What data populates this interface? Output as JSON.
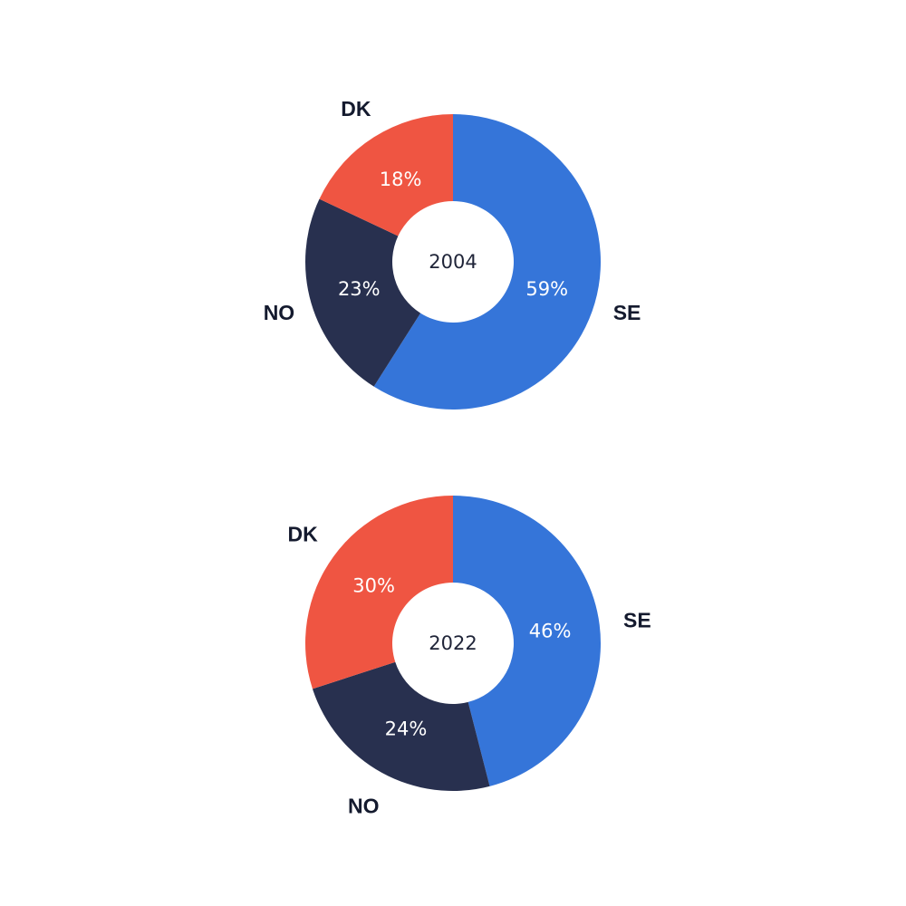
{
  "chart_data": [
    {
      "type": "pie",
      "center_label": "2004",
      "slices": [
        {
          "category": "SE",
          "value": 59,
          "label": "59%",
          "color": "#3575d9"
        },
        {
          "category": "NO",
          "value": 23,
          "label": "23%",
          "color": "#28304f"
        },
        {
          "category": "DK",
          "value": 18,
          "label": "18%",
          "color": "#ef5542"
        }
      ]
    },
    {
      "type": "pie",
      "center_label": "2022",
      "slices": [
        {
          "category": "SE",
          "value": 46,
          "label": "46%",
          "color": "#3575d9"
        },
        {
          "category": "NO",
          "value": 24,
          "label": "24%",
          "color": "#28304f"
        },
        {
          "category": "DK",
          "value": 30,
          "label": "30%",
          "color": "#ef5542"
        }
      ]
    }
  ]
}
